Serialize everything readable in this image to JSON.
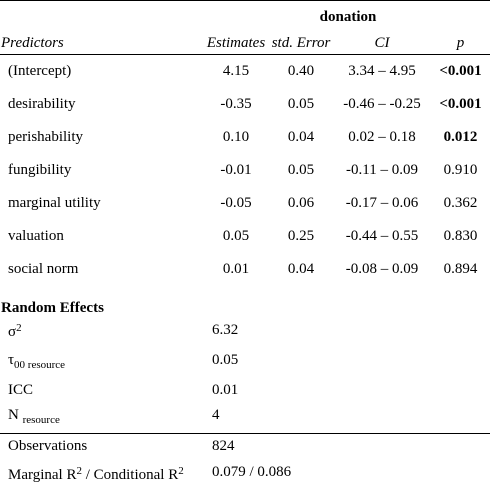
{
  "dependent_variable": "donation",
  "columns": {
    "predictors": "Predictors",
    "estimates": "Estimates",
    "std_error": "std. Error",
    "ci": "CI",
    "p": "p"
  },
  "rows": [
    {
      "predictor": "(Intercept)",
      "estimate": "4.15",
      "std_error": "0.40",
      "ci": "3.34 – 4.95",
      "p": "<0.001",
      "p_bold": true
    },
    {
      "predictor": "desirability",
      "estimate": "-0.35",
      "std_error": "0.05",
      "ci": "-0.46 – -0.25",
      "p": "<0.001",
      "p_bold": true
    },
    {
      "predictor": "perishability",
      "estimate": "0.10",
      "std_error": "0.04",
      "ci": "0.02 – 0.18",
      "p": "0.012",
      "p_bold": true
    },
    {
      "predictor": "fungibility",
      "estimate": "-0.01",
      "std_error": "0.05",
      "ci": "-0.11 – 0.09",
      "p": "0.910",
      "p_bold": false
    },
    {
      "predictor": "marginal utility",
      "estimate": "-0.05",
      "std_error": "0.06",
      "ci": "-0.17 – 0.06",
      "p": "0.362",
      "p_bold": false
    },
    {
      "predictor": "valuation",
      "estimate": "0.05",
      "std_error": "0.25",
      "ci": "-0.44 – 0.55",
      "p": "0.830",
      "p_bold": false
    },
    {
      "predictor": "social norm",
      "estimate": "0.01",
      "std_error": "0.04",
      "ci": "-0.08 – 0.09",
      "p": "0.894",
      "p_bold": false
    }
  ],
  "random_effects": {
    "heading": "Random Effects",
    "sigma2_symbol": "σ",
    "sigma2_sup": "2",
    "sigma2_value": "6.32",
    "tau00_symbol": "τ",
    "tau00_sub": "00 resource",
    "tau00_value": "0.05",
    "icc_label": "ICC",
    "icc_value": "0.01",
    "n_label": "N",
    "n_sub": "resource",
    "n_value": "4"
  },
  "fit": {
    "observations_label": "Observations",
    "observations_value": "824",
    "r2_marginal": "Marginal R",
    "r2_sup1": "2",
    "r2_sep": " / Conditional R",
    "r2_sup2": "2",
    "r2_value": "0.079 / 0.086"
  }
}
